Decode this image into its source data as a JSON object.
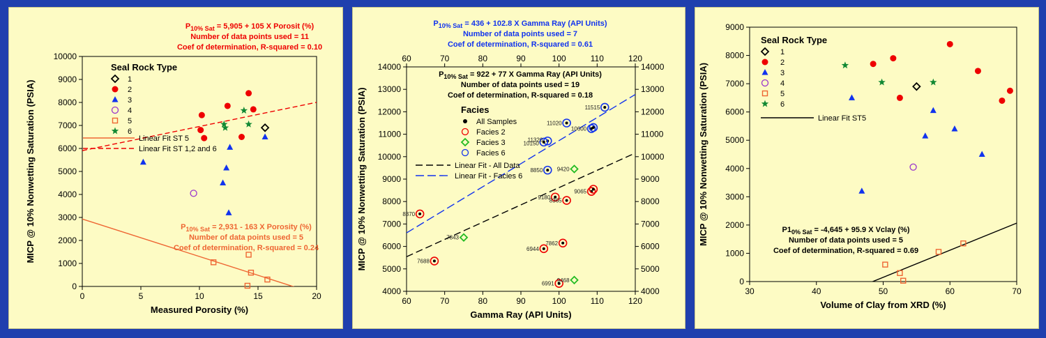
{
  "colors": {
    "background": "#1f3fae",
    "panel": "#fdfbc4",
    "black": "#000000",
    "red": "#ee0000",
    "blue": "#1133ee",
    "purple": "#9933cc",
    "orange": "#ee6633",
    "green": "#118833"
  },
  "chart_data": [
    {
      "type": "scatter",
      "xlabel": "Measured Porosity (%)",
      "ylabel": "MICP @ 10% Nonwetting Saturation (PSIA)",
      "xlim": [
        0,
        20
      ],
      "ylim": [
        0,
        10000
      ],
      "x_ticks": [
        0,
        5,
        10,
        15,
        20
      ],
      "y_ticks": [
        0,
        1000,
        2000,
        3000,
        4000,
        5000,
        6000,
        7000,
        8000,
        9000,
        10000
      ],
      "top_equation": {
        "lead": "P",
        "sub": "10% Sat",
        "rest": " = 5,905 + 105 X Porosit (%)",
        "lines": [
          "Number of data points used = 11",
          "Coef of determination, R-squared = 0.10"
        ]
      },
      "bottom_equation": {
        "lead": "P",
        "sub": "10% Sat",
        "rest": " = 2,931 - 163 X Porosity (%)",
        "lines": [
          "Number of data points used = 5",
          "Coef of determination, R-squared = 0.24"
        ]
      },
      "legend": {
        "title": "Seal Rock Type",
        "entries": [
          "1",
          "2",
          "3",
          "4",
          "5",
          "6"
        ],
        "fit_entries": [
          "Linear Fit ST 5",
          "Linear Fit ST 1,2 and 6"
        ]
      },
      "series": [
        {
          "name": "1",
          "marker": "diamond",
          "color": "#000000",
          "points": [
            [
              15.6,
              6900
            ]
          ]
        },
        {
          "name": "2",
          "marker": "dot",
          "color": "#ee0000",
          "points": [
            [
              10.2,
              7450
            ],
            [
              10.1,
              6800
            ],
            [
              10.4,
              6450
            ],
            [
              12.4,
              7850
            ],
            [
              13.6,
              6500
            ],
            [
              14.2,
              8400
            ],
            [
              14.6,
              7700
            ]
          ]
        },
        {
          "name": "3",
          "marker": "triangle",
          "color": "#1133ee",
          "points": [
            [
              5.2,
              5400
            ],
            [
              12.0,
              4500
            ],
            [
              12.3,
              5150
            ],
            [
              12.6,
              6050
            ],
            [
              12.5,
              3200
            ],
            [
              15.6,
              6500
            ]
          ]
        },
        {
          "name": "4",
          "marker": "circle",
          "color": "#9933cc",
          "points": [
            [
              9.5,
              4050
            ]
          ]
        },
        {
          "name": "5",
          "marker": "square",
          "color": "#ee6633",
          "points": [
            [
              11.2,
              1050
            ],
            [
              14.2,
              1380
            ],
            [
              14.4,
              600
            ],
            [
              15.8,
              300
            ],
            [
              14.1,
              30
            ]
          ]
        },
        {
          "name": "6",
          "marker": "star",
          "color": "#118833",
          "points": [
            [
              12.1,
              7050
            ],
            [
              13.8,
              7650
            ],
            [
              14.2,
              7050
            ],
            [
              12.2,
              6900
            ]
          ]
        }
      ],
      "fits": [
        {
          "name": "Linear Fit ST 1,2 and 6",
          "intercept": 5905,
          "slope": 105,
          "x_range": [
            0,
            20
          ],
          "color": "#ee0000",
          "dash": "7,4"
        },
        {
          "name": "Linear Fit ST 5",
          "intercept": 2931,
          "slope": -163,
          "x_range": [
            0,
            20
          ],
          "color": "#ee6633",
          "dash": ""
        }
      ]
    },
    {
      "type": "scatter",
      "xlabel": "Gamma Ray (API Units)",
      "ylabel": "MICP @ 10% Nonwetting Saturation (PSIA)",
      "xlim": [
        60,
        120
      ],
      "ylim": [
        4000,
        14000
      ],
      "x_ticks": [
        60,
        70,
        80,
        90,
        100,
        110,
        120
      ],
      "y_ticks": [
        4000,
        5000,
        6000,
        7000,
        8000,
        9000,
        10000,
        11000,
        12000,
        13000,
        14000
      ],
      "top_equation": {
        "lead": "P",
        "sub": "10% Sat",
        "rest": " = 436 + 102.8 X Gamma Ray (API Units)",
        "lines": [
          "Number of data points used = 7",
          "Coef of determination, R-squared = 0.61"
        ]
      },
      "inner_equation": {
        "lead": "P",
        "sub": "10% Sat",
        "rest": " = 922 + 77 X Gamma Ray (API Units)",
        "lines": [
          "Number of data points used = 19",
          "Coef of determination, R-squared = 0.18"
        ]
      },
      "legend": {
        "title": "Facies",
        "entries": [
          "All Samples",
          "Facies 2",
          "Facies 3",
          "Facies 6"
        ],
        "fit_entries": [
          "Linear Fit - All Data",
          "Linear Fit - Facies 6"
        ]
      },
      "series": [
        {
          "name": "Facies 2",
          "marker": "ringdot",
          "color": "#ee0000",
          "points": [
            [
              63.5,
              7450
            ],
            [
              67.3,
              5350
            ],
            [
              96,
              5900
            ],
            [
              101,
              6150
            ],
            [
              99,
              8200
            ],
            [
              102,
              8050
            ],
            [
              108.5,
              8450
            ],
            [
              109,
              8550
            ],
            [
              100,
              4350
            ]
          ]
        },
        {
          "name": "Facies 3",
          "marker": "diamond",
          "color": "#22bb22",
          "points": [
            [
              75,
              6400
            ],
            [
              104,
              9450
            ],
            [
              104,
              4500
            ]
          ]
        },
        {
          "name": "Facies 6",
          "marker": "ringdot",
          "color": "#1133ee",
          "points": [
            [
              97,
              10700
            ],
            [
              96,
              10650
            ],
            [
              97,
              9400
            ],
            [
              102,
              11500
            ],
            [
              108.5,
              11250
            ],
            [
              109,
              11300
            ],
            [
              112,
              12200
            ]
          ]
        }
      ],
      "point_labels": [
        {
          "text": "8370",
          "x": 63.5,
          "y": 7450
        },
        {
          "text": "7688",
          "x": 67.3,
          "y": 5350
        },
        {
          "text": "7843",
          "x": 75,
          "y": 6400
        },
        {
          "text": "6944",
          "x": 96,
          "y": 5900
        },
        {
          "text": "7862",
          "x": 101,
          "y": 6150
        },
        {
          "text": "9180",
          "x": 99,
          "y": 8200
        },
        {
          "text": "8365",
          "x": 102,
          "y": 8050
        },
        {
          "text": "9065",
          "x": 108.5,
          "y": 8450
        },
        {
          "text": "9468",
          "x": 104,
          "y": 4500
        },
        {
          "text": "6991",
          "x": 100,
          "y": 4350
        },
        {
          "text": "9420",
          "x": 104,
          "y": 9450
        },
        {
          "text": "8850",
          "x": 97,
          "y": 9400
        },
        {
          "text": "11320",
          "x": 97,
          "y": 10750
        },
        {
          "text": "10150",
          "x": 96,
          "y": 10600
        },
        {
          "text": "11020",
          "x": 102,
          "y": 11500
        },
        {
          "text": "10600",
          "x": 108.5,
          "y": 11250
        },
        {
          "text": "11515",
          "x": 112,
          "y": 12200
        }
      ],
      "fits": [
        {
          "name": "Linear Fit - All Data",
          "intercept": 922,
          "slope": 77,
          "x_range": [
            60,
            120
          ],
          "color": "#000000",
          "dash": "10,5"
        },
        {
          "name": "Linear Fit - Facies 6",
          "intercept": 436,
          "slope": 102.8,
          "x_range": [
            60,
            120
          ],
          "color": "#1133ee",
          "dash": "12,5"
        }
      ]
    },
    {
      "type": "scatter",
      "xlabel": "Volume of Clay from XRD (%)",
      "ylabel": "MICP @ 10% Nonwetting Saturation (PSIA)",
      "xlim": [
        30,
        70
      ],
      "ylim": [
        0,
        9000
      ],
      "x_ticks": [
        30,
        40,
        50,
        60,
        70
      ],
      "y_ticks": [
        0,
        1000,
        2000,
        3000,
        4000,
        5000,
        6000,
        7000,
        8000,
        9000
      ],
      "inner_equation": {
        "lead": "P1",
        "sub": "0% Sat",
        "rest": " = -4,645 + 95.9 X Vclay (%)",
        "lines": [
          "Number of data points used = 5",
          "Coef of determination, R-squared = 0.69"
        ]
      },
      "legend": {
        "title": "Seal Rock Type",
        "entries": [
          "1",
          "2",
          "3",
          "4",
          "5",
          "6"
        ],
        "fit_entries": [
          "Linear Fit ST5"
        ]
      },
      "series": [
        {
          "name": "1",
          "marker": "diamond",
          "color": "#000000",
          "points": [
            [
              55,
              6900
            ]
          ]
        },
        {
          "name": "2",
          "marker": "dot",
          "color": "#ee0000",
          "points": [
            [
              48.5,
              7700
            ],
            [
              51.5,
              7900
            ],
            [
              52.5,
              6500
            ],
            [
              60,
              8400
            ],
            [
              64.2,
              7450
            ],
            [
              67.8,
              6400
            ],
            [
              69,
              6750
            ]
          ]
        },
        {
          "name": "3",
          "marker": "triangle",
          "color": "#1133ee",
          "points": [
            [
              45.3,
              6500
            ],
            [
              46.8,
              3200
            ],
            [
              56.3,
              5150
            ],
            [
              57.5,
              6050
            ],
            [
              60.7,
              5400
            ],
            [
              64.8,
              4500
            ]
          ]
        },
        {
          "name": "4",
          "marker": "circle",
          "color": "#9933cc",
          "points": [
            [
              54.5,
              4050
            ]
          ]
        },
        {
          "name": "5",
          "marker": "square",
          "color": "#ee6633",
          "points": [
            [
              50.3,
              600
            ],
            [
              52.5,
              300
            ],
            [
              53,
              30
            ],
            [
              58.3,
              1050
            ],
            [
              62,
              1350
            ]
          ]
        },
        {
          "name": "6",
          "marker": "star",
          "color": "#118833",
          "points": [
            [
              44.3,
              7650
            ],
            [
              49.8,
              7050
            ],
            [
              57.5,
              7050
            ]
          ]
        }
      ],
      "fits": [
        {
          "name": "Linear Fit ST5",
          "intercept": -4645,
          "slope": 95.9,
          "x_range": [
            48,
            70
          ],
          "color": "#000000",
          "dash": ""
        }
      ]
    }
  ]
}
